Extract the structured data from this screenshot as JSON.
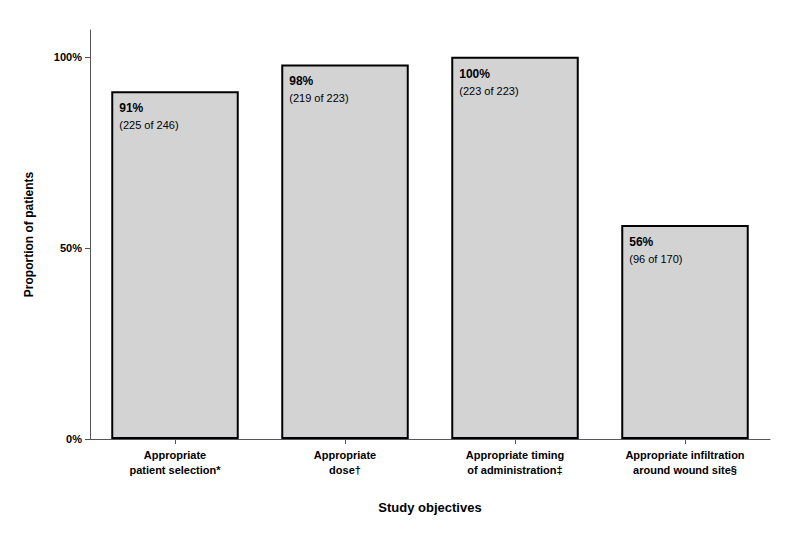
{
  "chart_data": {
    "type": "bar",
    "categories": [
      "Appropriate\npatient selection*",
      "Appropriate\ndose†",
      "Appropriate timing\nof administration‡",
      "Appropriate infiltration\naround wound site§"
    ],
    "values": [
      91,
      98,
      100,
      56
    ],
    "value_labels": [
      "91%",
      "98%",
      "100%",
      "56%"
    ],
    "annotations": [
      "(225 of 246)",
      "(219 of 223)",
      "(223 of 223)",
      "(96 of 170)"
    ],
    "data_labels": true,
    "color": "#d3d3d3",
    "ylabel": "Proportion of patients",
    "xlabel": "Study objectives",
    "ylim": [
      0,
      107
    ],
    "yticks": [
      {
        "value": 0,
        "label": "0%"
      },
      {
        "value": 50,
        "label": "50%"
      },
      {
        "value": 100,
        "label": "100%"
      }
    ],
    "grid": false
  }
}
